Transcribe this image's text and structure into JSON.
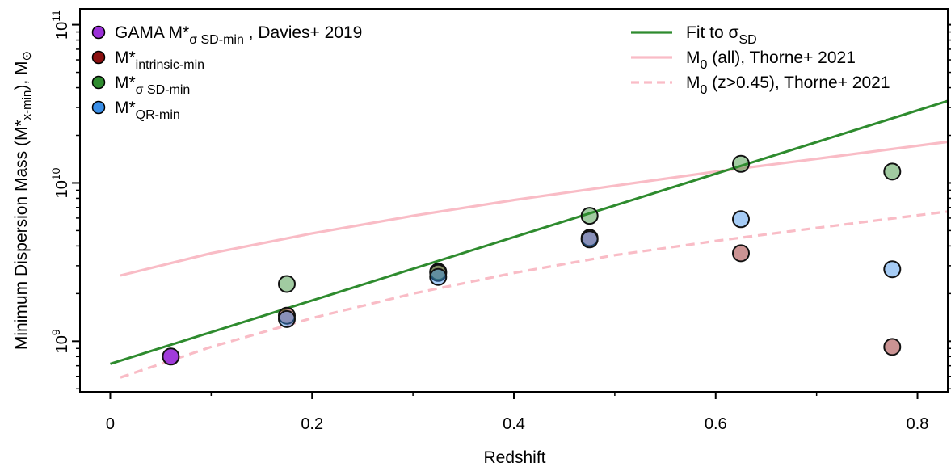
{
  "chart_data": {
    "type": "scatter",
    "xlabel": "Redshift",
    "ylabel": "Minimum Dispersion Mass (M*x-min), M⊙",
    "xlim": [
      -0.03,
      0.83
    ],
    "ylim_log10": [
      8.68,
      11.1
    ],
    "yscale": "log",
    "x_ticks": [
      0,
      0.2,
      0.4,
      0.6,
      0.8
    ],
    "x_tick_labels": [
      "0",
      "0.2",
      "0.4",
      "0.6",
      "0.8"
    ],
    "y_major_ticks_log10": [
      9,
      10,
      11
    ],
    "y_tick_labels": [
      {
        "base": "10",
        "exp": "9"
      },
      {
        "base": "10",
        "exp": "10"
      },
      {
        "base": "10",
        "exp": "11"
      }
    ],
    "series": [
      {
        "key": "gama",
        "name_main": "GAMA M*",
        "name_sub": "σ SD-min",
        "name_tail": " , Davies+ 2019",
        "color": "#9b30d8",
        "points": [
          {
            "x": 0.06,
            "y": 800000000.0
          }
        ]
      },
      {
        "key": "intrinsic",
        "name_main": "M*",
        "name_sub": "intrinsic-min",
        "name_tail": "",
        "color": "#8b1010",
        "points": [
          {
            "x": 0.175,
            "y": 1450000000.0
          },
          {
            "x": 0.325,
            "y": 2750000000.0
          },
          {
            "x": 0.475,
            "y": 4500000000.0
          },
          {
            "x": 0.625,
            "y": 3600000000.0
          },
          {
            "x": 0.775,
            "y": 920000000.0
          }
        ]
      },
      {
        "key": "sigma",
        "name_main": "M*",
        "name_sub": "σ SD-min",
        "name_tail": "",
        "color": "#2e8b2e",
        "points": [
          {
            "x": 0.175,
            "y": 2300000000.0
          },
          {
            "x": 0.325,
            "y": 2700000000.0
          },
          {
            "x": 0.475,
            "y": 6200000000.0
          },
          {
            "x": 0.625,
            "y": 13200000000.0
          },
          {
            "x": 0.775,
            "y": 11800000000.0
          }
        ]
      },
      {
        "key": "qr",
        "name_main": "M*",
        "name_sub": "QR-min",
        "name_tail": "",
        "color": "#3a8fe8",
        "points": [
          {
            "x": 0.175,
            "y": 1380000000.0
          },
          {
            "x": 0.325,
            "y": 2550000000.0
          },
          {
            "x": 0.475,
            "y": 4400000000.0
          },
          {
            "x": 0.625,
            "y": 5900000000.0
          },
          {
            "x": 0.775,
            "y": 2850000000.0
          }
        ]
      }
    ],
    "lines": [
      {
        "key": "fit",
        "label_main": "Fit to σ",
        "label_sub": "SD",
        "label_tail": "",
        "color": "#2e8b2e",
        "style": "solid",
        "x": [
          0.0,
          0.83
        ],
        "y": [
          720000000.0,
          33000000000.0
        ]
      },
      {
        "key": "thorne_all",
        "label_main": "M",
        "label_sub": "0",
        "label_tail": " (all), Thorne+ 2021",
        "color": "#f9bcc6",
        "style": "solid",
        "x": [
          0.01,
          0.1,
          0.2,
          0.3,
          0.4,
          0.5,
          0.6,
          0.7,
          0.83
        ],
        "y": [
          2600000000.0,
          3600000000.0,
          4800000000.0,
          6200000000.0,
          7800000000.0,
          9600000000.0,
          11800000000.0,
          14200000000.0,
          18200000000.0
        ]
      },
      {
        "key": "thorne_z",
        "label_main": "M",
        "label_sub": "0",
        "label_tail": " (z>0.45), Thorne+ 2021",
        "color": "#f9bcc6",
        "style": "dashed",
        "x": [
          0.01,
          0.1,
          0.2,
          0.3,
          0.4,
          0.5,
          0.6,
          0.7,
          0.83
        ],
        "y": [
          590000000.0,
          920000000.0,
          1400000000.0,
          2000000000.0,
          2700000000.0,
          3500000000.0,
          4300000000.0,
          5200000000.0,
          6600000000.0
        ]
      }
    ],
    "grid": false,
    "legend_placement": [
      "top-left",
      "top-right"
    ]
  }
}
